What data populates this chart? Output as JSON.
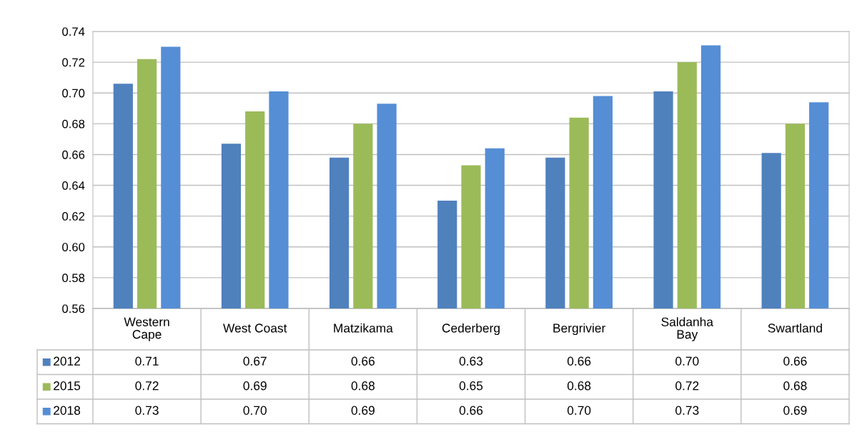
{
  "chart_data": {
    "type": "bar",
    "categories": [
      "Western\nCape",
      "West Coast",
      "Matzikama",
      "Cederberg",
      "Bergrivier",
      "Saldanha\nBay",
      "Swartland"
    ],
    "series": [
      {
        "name": "2012",
        "color": "#4f81bd",
        "values": [
          0.706,
          0.667,
          0.658,
          0.63,
          0.658,
          0.701,
          0.661
        ],
        "value_labels": [
          "0.71",
          "0.67",
          "0.66",
          "0.63",
          "0.66",
          "0.70",
          "0.66"
        ]
      },
      {
        "name": "2015",
        "color": "#9bbb59",
        "values": [
          0.722,
          0.688,
          0.68,
          0.653,
          0.684,
          0.72,
          0.68
        ],
        "value_labels": [
          "0.72",
          "0.69",
          "0.68",
          "0.65",
          "0.68",
          "0.72",
          "0.68"
        ]
      },
      {
        "name": "2018",
        "color": "#558ed5",
        "values": [
          0.73,
          0.701,
          0.693,
          0.664,
          0.698,
          0.731,
          0.694
        ],
        "value_labels": [
          "0.73",
          "0.70",
          "0.69",
          "0.66",
          "0.70",
          "0.73",
          "0.69"
        ]
      }
    ],
    "ylim": [
      0.56,
      0.74
    ],
    "yticks": [
      {
        "value": 0.56,
        "label": "0.56"
      },
      {
        "value": 0.58,
        "label": "0.58"
      },
      {
        "value": 0.6,
        "label": "0.60"
      },
      {
        "value": 0.62,
        "label": "0.62"
      },
      {
        "value": 0.64,
        "label": "0.64"
      },
      {
        "value": 0.66,
        "label": "0.66"
      },
      {
        "value": 0.68,
        "label": "0.68"
      },
      {
        "value": 0.7,
        "label": "0.70"
      },
      {
        "value": 0.72,
        "label": "0.72"
      },
      {
        "value": 0.74,
        "label": "0.74"
      }
    ],
    "grid": "y",
    "legend": "bottom"
  }
}
